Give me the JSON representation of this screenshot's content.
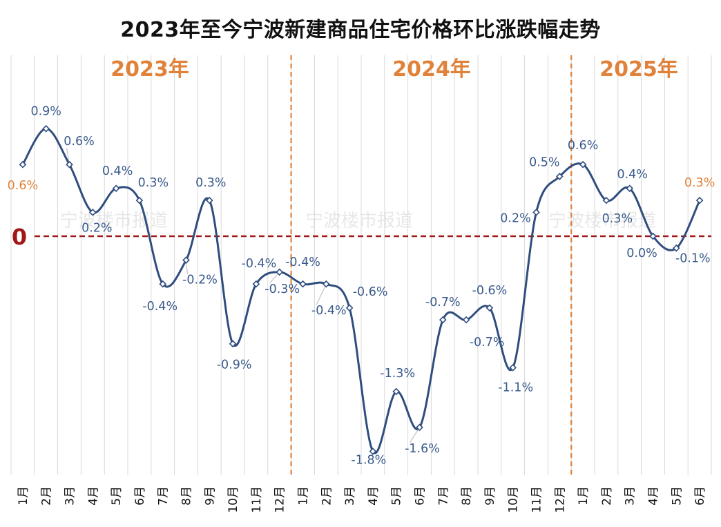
{
  "chart_data": {
    "type": "line",
    "title": "2023年至今宁波新建商品住宅价格环比涨跌幅走势",
    "year_labels": [
      "2023年",
      "2024年",
      "2025年"
    ],
    "zero_label": "0",
    "watermark": "宁波楼市报道",
    "x": [
      "1月",
      "2月",
      "3月",
      "4月",
      "5月",
      "6月",
      "7月",
      "8月",
      "9月",
      "10月",
      "11月",
      "12月",
      "1月",
      "2月",
      "3月",
      "4月",
      "5月",
      "6月",
      "7月",
      "8月",
      "9月",
      "10月",
      "11月",
      "12月",
      "1月",
      "2月",
      "3月",
      "4月",
      "5月",
      "6月"
    ],
    "values": [
      0.6,
      0.9,
      0.6,
      0.2,
      0.4,
      0.3,
      -0.4,
      -0.2,
      0.3,
      -0.9,
      -0.4,
      -0.3,
      -0.4,
      -0.4,
      -0.6,
      -1.8,
      -1.3,
      -1.6,
      -0.7,
      -0.7,
      -0.6,
      -1.1,
      0.2,
      0.5,
      0.6,
      0.3,
      0.4,
      0.0,
      -0.1,
      0.3
    ],
    "data_labels": [
      "0.6%",
      "0.9%",
      "0.6%",
      "0.2%",
      "0.4%",
      "0.3%",
      "-0.4%",
      "-0.2%",
      "0.3%",
      "-0.9%",
      "-0.4%",
      "-0.3%",
      "-0.4%",
      "-0.4%",
      "-0.6%",
      "-1.8%",
      "-1.3%",
      "-1.6%",
      "-0.7%",
      "-0.7%",
      "-0.6%",
      "-1.1%",
      "0.2%",
      "0.5%",
      "0.6%",
      "0.3%",
      "0.4%",
      "0.0%",
      "-0.1%",
      "0.3%"
    ],
    "year_boundaries": [
      12,
      24
    ],
    "ylim": [
      -2.0,
      1.25
    ],
    "grid": "vertical",
    "colors": {
      "line": "#2f4d7e",
      "label": "#3a5a8c",
      "highlight_label": "#e0823a",
      "year_label": "#e0823a",
      "year_divider": "#e0823a",
      "zero_line": "#a01818",
      "zero_label": "#a01818",
      "grid": "#d9d9d9",
      "watermark": "#e8e8e8"
    },
    "highlight_indices": [
      0,
      29
    ]
  }
}
